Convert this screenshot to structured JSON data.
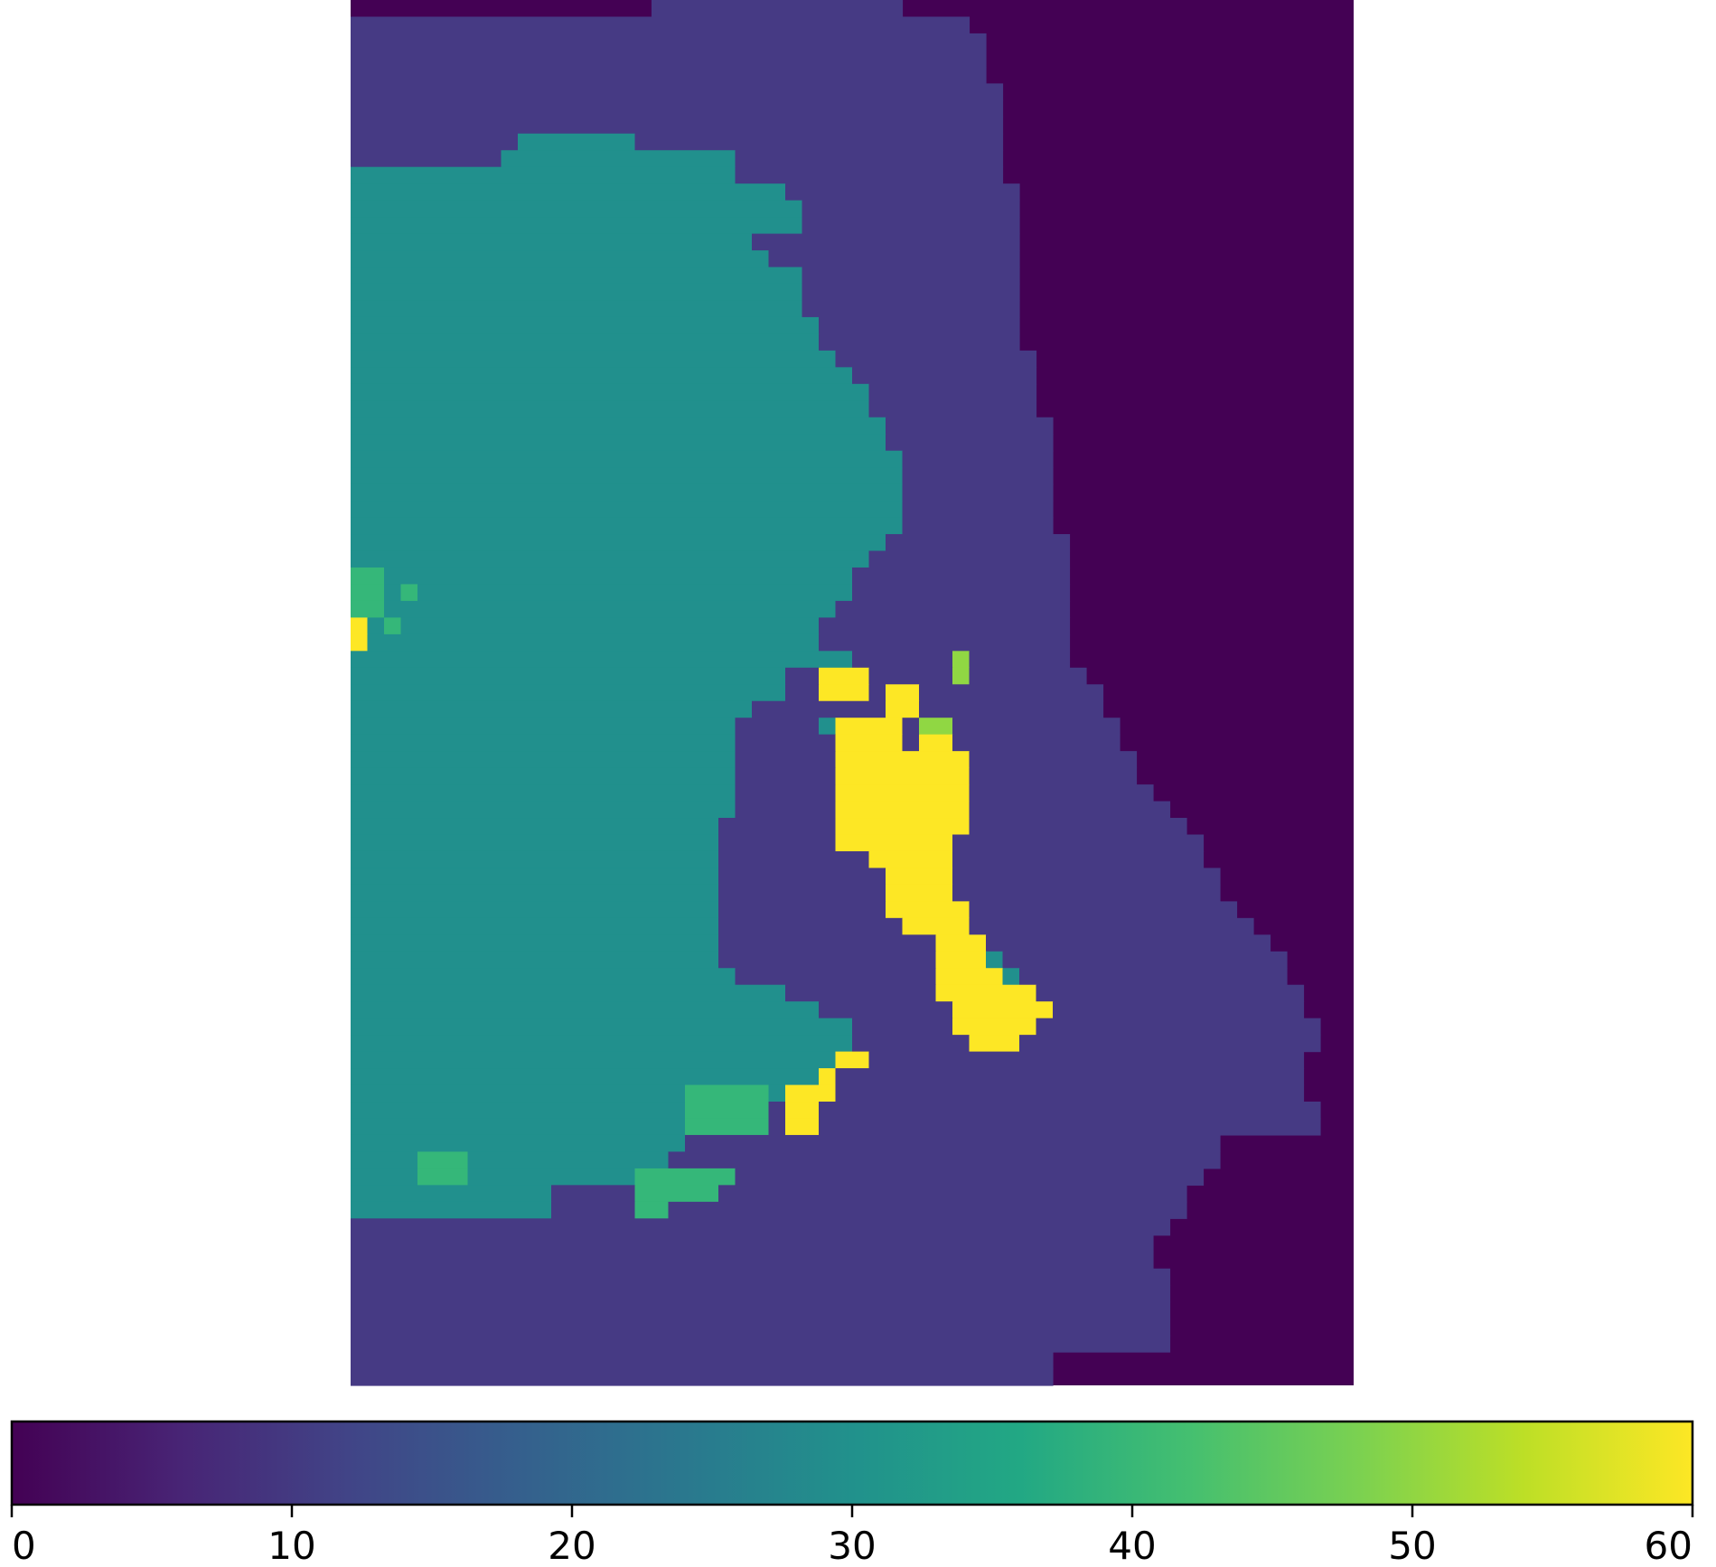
{
  "chart_data": {
    "type": "heatmap",
    "title": "",
    "xlabel": "",
    "ylabel": "",
    "colormap": "viridis",
    "value_range": [
      0,
      60
    ],
    "grid_shape": {
      "rows": 83,
      "cols": 60
    },
    "colorbar": {
      "orientation": "horizontal",
      "placement": "bottom",
      "ticks": [
        0,
        10,
        20,
        30,
        40,
        50,
        60
      ],
      "tick_labels": [
        "0",
        "10",
        "20",
        "30",
        "40",
        "50",
        "60"
      ]
    },
    "levels": [
      {
        "value": 0,
        "color": "#440154"
      },
      {
        "value": 12,
        "color": "#463a84"
      },
      {
        "value": 30,
        "color": "#21908d"
      },
      {
        "value": 42,
        "color": "#35b779"
      },
      {
        "value": 50,
        "color": "#90d743"
      },
      {
        "value": 60,
        "color": "#fde725"
      }
    ],
    "axis_visible": false,
    "grid": false,
    "legend": "none"
  }
}
